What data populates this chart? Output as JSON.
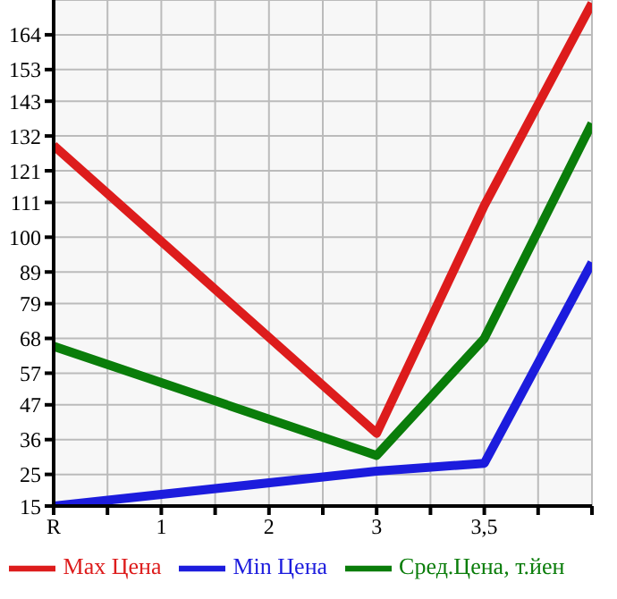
{
  "chart_data": {
    "type": "line",
    "categories": [
      "R",
      "1",
      "2",
      "3",
      "3,5",
      null
    ],
    "series": [
      {
        "name": "Max Цена",
        "color": "#dd1c1c",
        "values": [
          129,
          null,
          null,
          38,
          110,
          174
        ]
      },
      {
        "name": "Min Цена",
        "color": "#1c1cdd",
        "values": [
          15,
          null,
          null,
          26,
          28.5,
          92
        ]
      },
      {
        "name": "Сред.Цена, т.йен",
        "color": "#0a7d0a",
        "values": [
          65.5,
          null,
          null,
          31,
          68,
          136
        ]
      }
    ],
    "ylim": [
      15,
      175
    ],
    "yticks": [
      15,
      25,
      36,
      47,
      57,
      68,
      79,
      89,
      100,
      111,
      121,
      132,
      143,
      153,
      164
    ],
    "grid": true,
    "legend": "bottom",
    "marker": "none",
    "line_style": "solid"
  }
}
